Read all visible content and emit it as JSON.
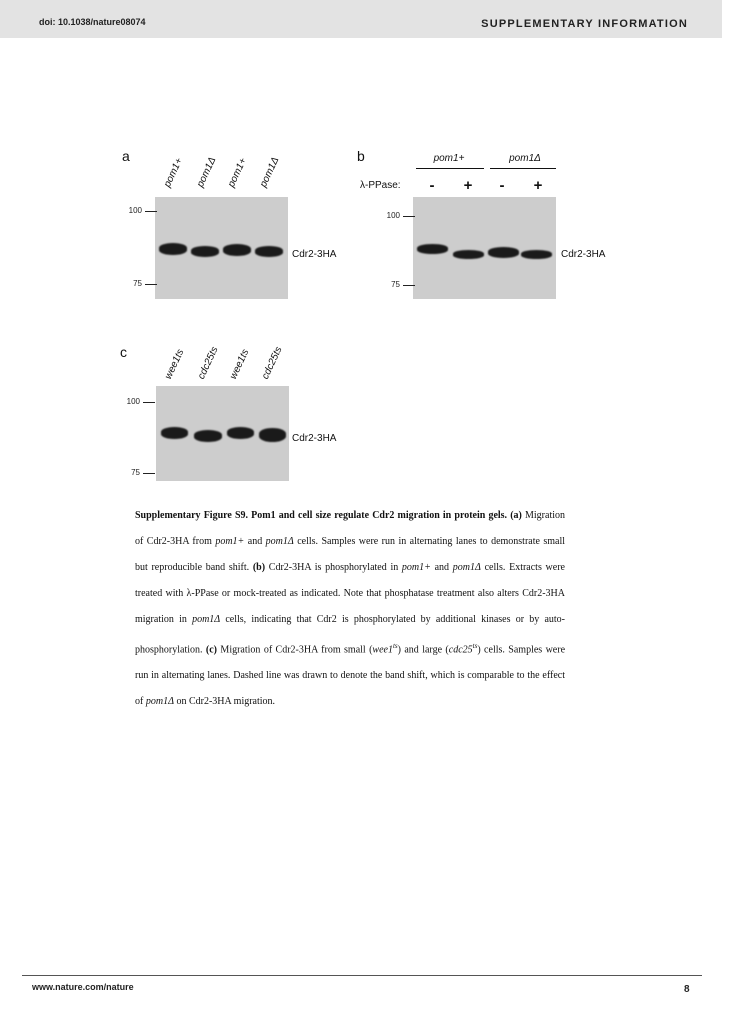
{
  "header": {
    "doi": "doi: 10.1038/nature08074",
    "section": "SUPPLEMENTARY INFORMATION"
  },
  "panel_a": {
    "label": "a",
    "lanes": [
      "pom1+",
      "pom1Δ",
      "pom1+",
      "pom1Δ"
    ],
    "mw_markers": [
      "100",
      "75"
    ],
    "band_label": "Cdr2-3HA"
  },
  "panel_b": {
    "label": "b",
    "groups": [
      "pom1+",
      "pom1Δ"
    ],
    "treatment_label": "λ-PPase:",
    "treatments": [
      "-",
      "+",
      "-",
      "+"
    ],
    "mw_markers": [
      "100",
      "75"
    ],
    "band_label": "Cdr2-3HA"
  },
  "panel_c": {
    "label": "c",
    "lanes": [
      "wee1ts",
      "cdc25ts",
      "wee1ts",
      "cdc25ts"
    ],
    "mw_markers": [
      "100",
      "75"
    ],
    "band_label": "Cdr2-3HA"
  },
  "caption": {
    "title": "Supplementary Figure S9. Pom1 and cell size regulate Cdr2 migration in protein gels.",
    "a_tag": "(a)",
    "a_text_1": "Migration of Cdr2-3HA from",
    "a_g1": "pom1+",
    "a_and": "and",
    "a_g2": "pom1Δ",
    "a_text_2": "cells. Samples were run in alternating lanes to demonstrate small but reproducible band shift.",
    "b_tag": "(b)",
    "b_text_1": "Cdr2-3HA is phosphorylated in",
    "b_g1": "pom1+",
    "b_and": "and",
    "b_g2": "pom1Δ",
    "b_text_2": "cells. Extracts were treated with λ-PPase or mock-treated as indicated. Note that phosphatase treatment also alters Cdr2-3HA migration in",
    "b_g3": "pom1Δ",
    "b_text_3": "cells, indicating that Cdr2 is phosphorylated by additional kinases or by auto-phosphorylation.",
    "c_tag": "(c)",
    "c_text_1": "Migration of Cdr2-3HA from small (",
    "c_g1": "wee1",
    "c_g1_sup": "ts",
    "c_text_2": ") and large (",
    "c_g2": "cdc25",
    "c_g2_sup": "ts",
    "c_text_3": ") cells. Samples were run in alternating lanes. Dashed line was drawn to denote the band shift, which is comparable to the effect of",
    "c_g3": "pom1Δ",
    "c_text_4": "on Cdr2-3HA migration."
  },
  "footer": {
    "url": "www.nature.com/nature",
    "page": "8"
  }
}
